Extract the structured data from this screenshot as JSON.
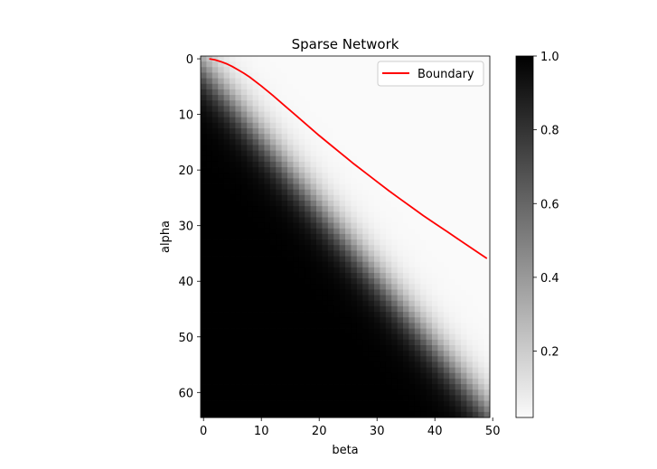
{
  "chart_data": {
    "type": "heatmap",
    "title": "Sparse Network",
    "xlabel": "beta",
    "ylabel": "alpha",
    "n_cols": 50,
    "n_rows": 65,
    "xlim": [
      -0.5,
      49.5
    ],
    "ylim": [
      64.5,
      -0.5
    ],
    "y_inverted": true,
    "x_ticks": [
      0,
      10,
      20,
      30,
      40,
      50
    ],
    "x_tick_labels": [
      "0",
      "10",
      "20",
      "30",
      "40",
      "50"
    ],
    "y_ticks": [
      0,
      10,
      20,
      30,
      40,
      50,
      60
    ],
    "y_tick_labels": [
      "0",
      "10",
      "20",
      "30",
      "40",
      "50",
      "60"
    ],
    "colormap": "gray_r",
    "colorbar": {
      "range": [
        0.02,
        1.0
      ],
      "ticks": [
        0.2,
        0.4,
        0.6,
        0.8,
        1.0
      ],
      "tick_labels": [
        "0.2",
        "0.4",
        "0.6",
        "0.8",
        "1.0"
      ]
    },
    "transition": {
      "description": "values ~1.0 below the diagonal band, ~0 above; band centered near alpha = 1.25*beta + 2",
      "slope": 1.25,
      "intercept": 2.0,
      "width": 2.6
    },
    "series": [
      {
        "name": "Boundary",
        "color": "#ff0000",
        "x": [
          1,
          2,
          3,
          4,
          5,
          6,
          7,
          8,
          10,
          12,
          14,
          16,
          18,
          20,
          22,
          24,
          26,
          28,
          30,
          32,
          34,
          36,
          38,
          40,
          42,
          44,
          46,
          48,
          49
        ],
        "y": [
          0.0,
          0.2,
          0.5,
          0.9,
          1.4,
          2.0,
          2.6,
          3.3,
          4.9,
          6.6,
          8.4,
          10.2,
          12.0,
          13.8,
          15.5,
          17.2,
          18.9,
          20.5,
          22.1,
          23.7,
          25.2,
          26.7,
          28.2,
          29.6,
          31.0,
          32.4,
          33.8,
          35.2,
          35.9
        ]
      }
    ],
    "legend": {
      "location": "upper right",
      "entries": [
        "Boundary"
      ]
    }
  }
}
